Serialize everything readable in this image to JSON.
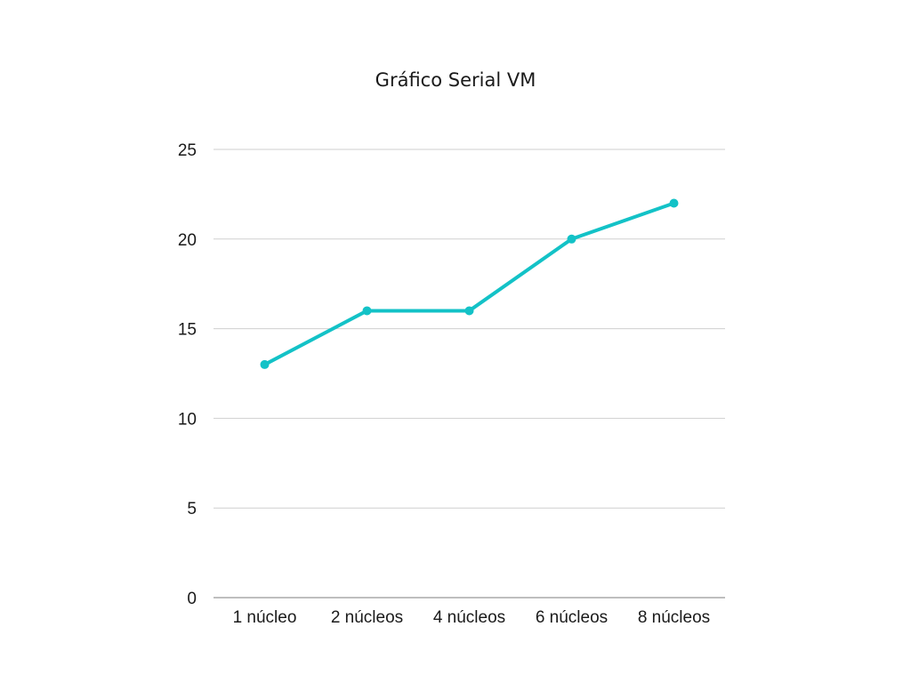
{
  "chart_data": {
    "type": "line",
    "title": "Gráfico Serial VM",
    "categories": [
      "1 núcleo",
      "2 núcleos",
      "4 núcleos",
      "6 núcleos",
      "8 núcleos"
    ],
    "series": [
      {
        "values": [
          13,
          16,
          16,
          20,
          22
        ]
      }
    ],
    "yticks": [
      "0",
      "5",
      "10",
      "15",
      "20",
      "25"
    ],
    "ylim": [
      0,
      25
    ],
    "grid": true,
    "legend": "none",
    "colors": {
      "line": "#13c2c7"
    }
  }
}
